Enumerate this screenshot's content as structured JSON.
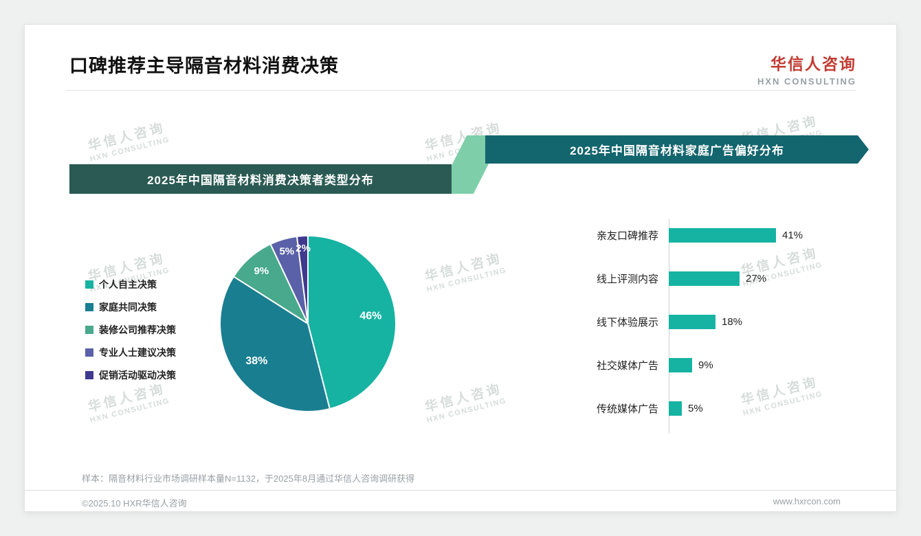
{
  "page": {
    "title": "口碑推荐主导隔音材料消费决策",
    "logo": {
      "cn": "华信人咨询",
      "en": "HXN CONSULTING"
    },
    "watermark": {
      "cn": "华信人咨询",
      "en": "HXN CONSULTING"
    },
    "footer": {
      "sample_note": "样本：隔音材料行业市场调研样本量N=1132，于2025年8月通过华信人咨询调研获得",
      "copyright": "©2025.10 HXR华信人咨询",
      "website": "www.hxrcon.com"
    }
  },
  "colors": {
    "accent_teal": "#16b3a2",
    "banner_left_bg": "#2a5a53",
    "banner_right_bg": "#13656e",
    "connector_green": "#7ecfa9",
    "logo_red": "#c23a31"
  },
  "chart_data": [
    {
      "type": "pie",
      "title": "2025年中国隔音材料消费决策者类型分布",
      "labels": [
        "个人自主决策",
        "家庭共同决策",
        "装修公司推荐决策",
        "专业人士建议决策",
        "促销活动驱动决策"
      ],
      "values": [
        46,
        38,
        9,
        5,
        2
      ],
      "unit": "%",
      "colors": [
        "#16b3a2",
        "#1a7e91",
        "#48a98c",
        "#5a61a8",
        "#3f3a8e"
      ],
      "legend_position": "left",
      "start_angle_deg": 0,
      "direction": "clockwise"
    },
    {
      "type": "bar",
      "title": "2025年中国隔音材料家庭广告偏好分布",
      "orientation": "horizontal",
      "categories": [
        "亲友口碑推荐",
        "线上评测内容",
        "线下体验展示",
        "社交媒体广告",
        "传统媒体广告"
      ],
      "values": [
        41,
        27,
        18,
        9,
        5
      ],
      "unit": "%",
      "bar_color": "#16b3a2",
      "xlim": [
        0,
        45
      ],
      "grid": false
    }
  ]
}
